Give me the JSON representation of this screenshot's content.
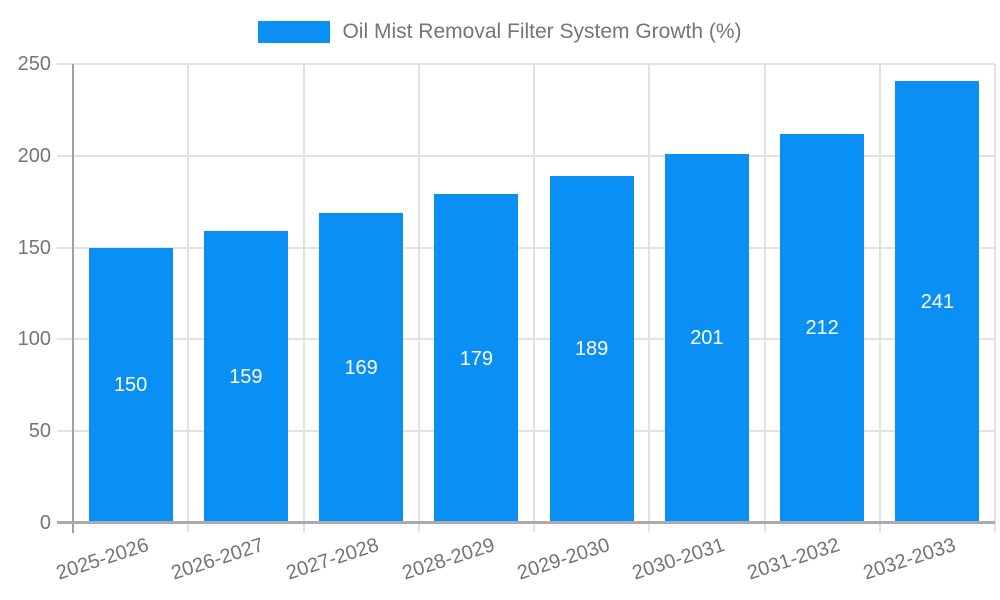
{
  "chart_data": {
    "type": "bar",
    "title": "Oil Mist Removal Filter System Growth (%)",
    "categories": [
      "2025-2026",
      "2026-2027",
      "2027-2028",
      "2028-2029",
      "2029-2030",
      "2030-2031",
      "2031-2032",
      "2032-2033"
    ],
    "values": [
      150,
      159,
      169,
      179,
      189,
      201,
      212,
      241
    ],
    "xlabel": "",
    "ylabel": "",
    "ylim": [
      0,
      250
    ],
    "yticks": [
      0,
      50,
      100,
      150,
      200,
      250
    ],
    "grid": true,
    "legend": {
      "label": "Oil Mist Removal Filter System Growth (%)",
      "position": "top-center"
    },
    "colors": {
      "bar": "#0a90f5",
      "bar_label": "#ffffff",
      "axis_text": "#757575",
      "gridline": "#e2e2e2",
      "axis_line": "#a0a0a0"
    }
  }
}
